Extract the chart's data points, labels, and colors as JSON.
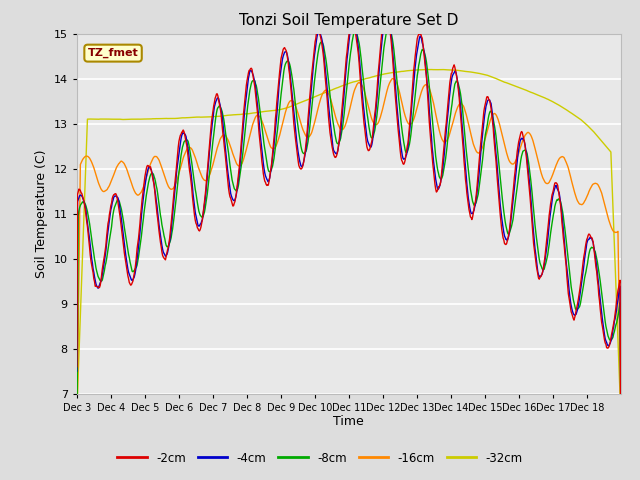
{
  "title": "Tonzi Soil Temperature Set D",
  "xlabel": "Time",
  "ylabel": "Soil Temperature (C)",
  "ylim": [
    7.0,
    15.0
  ],
  "yticks": [
    7.0,
    8.0,
    9.0,
    10.0,
    11.0,
    12.0,
    13.0,
    14.0,
    15.0
  ],
  "xtick_labels": [
    "Dec 3",
    "Dec 4",
    "Dec 5",
    "Dec 6",
    "Dec 7",
    "Dec 8",
    "Dec 9",
    "Dec 10",
    "Dec 11",
    "Dec 12",
    "Dec 13",
    "Dec 14",
    "Dec 15",
    "Dec 16",
    "Dec 17",
    "Dec 18"
  ],
  "series_colors": {
    "-2cm": "#dd0000",
    "-4cm": "#0000cc",
    "-8cm": "#00aa00",
    "-16cm": "#ff8800",
    "-32cm": "#cccc00"
  },
  "legend_label": "TZ_fmet",
  "legend_box_facecolor": "#ffffcc",
  "legend_box_edgecolor": "#aa8800",
  "legend_text_color": "#880000",
  "fig_facecolor": "#dddddd",
  "ax_facecolor": "#e8e8e8",
  "grid_color": "#ffffff",
  "n_days": 16,
  "ppd": 48
}
